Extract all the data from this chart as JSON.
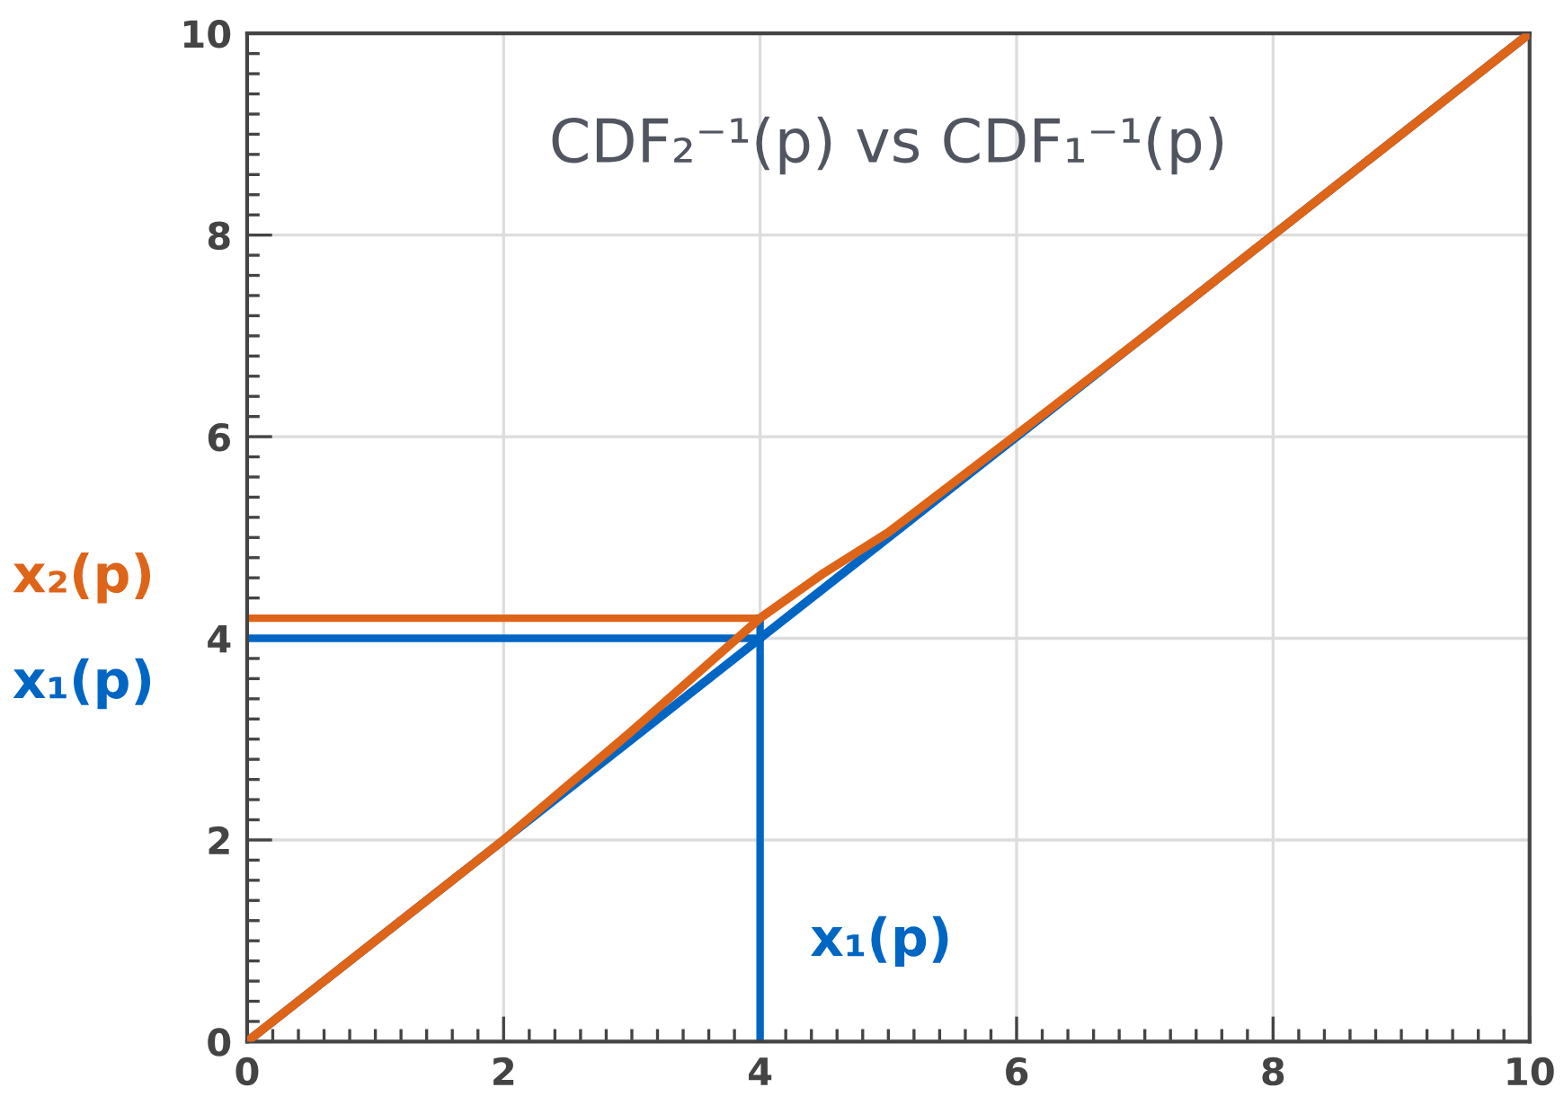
{
  "chart_data": {
    "type": "line",
    "title": "CDF₂⁻¹(p) vs CDF₁⁻¹(p)",
    "series": [
      {
        "color": "#0066c4",
        "x": [
          0,
          4,
          6,
          10
        ],
        "values": [
          0,
          4,
          6,
          10
        ]
      },
      {
        "color": "#de6418",
        "x": [
          0,
          1,
          2,
          3,
          4,
          4.5,
          5,
          6,
          7,
          8,
          10
        ],
        "values": [
          0,
          1,
          2,
          3.08,
          4.2,
          4.65,
          5.05,
          6.02,
          7,
          8,
          10
        ]
      }
    ],
    "ref_lines": [
      {
        "axis": "y",
        "value": 4.2,
        "label": "x₂(p)",
        "color": "#de6418"
      },
      {
        "axis": "y",
        "value": 4,
        "label": "x₁(p)",
        "color": "#0066c4"
      },
      {
        "axis": "x",
        "value": 4,
        "label": "x₁(p)",
        "color": "#0066c4"
      }
    ],
    "xlim": [
      0,
      10
    ],
    "ylim": [
      0,
      10
    ],
    "xticks": [
      0,
      2,
      4,
      6,
      8,
      10
    ],
    "yticks": [
      0,
      2,
      4,
      6,
      8,
      10
    ],
    "grid": true,
    "line_style": "solid"
  }
}
